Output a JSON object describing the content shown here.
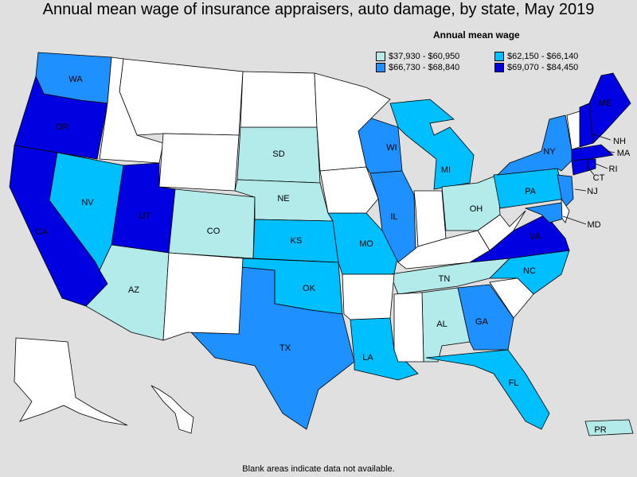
{
  "title": "Annual mean wage of insurance appraisers, auto damage, by state, May 2019",
  "legend": {
    "title": "Annual mean wage",
    "items": [
      {
        "label": "$37,930 - $60,950",
        "color": "#b3eaea"
      },
      {
        "label": "$62,150 - $66,140",
        "color": "#00bfff"
      },
      {
        "label": "$66,730 - $68,840",
        "color": "#1e90ff"
      },
      {
        "label": "$69,070 - $84,450",
        "color": "#0000e0"
      }
    ]
  },
  "footnote": "Blank areas indicate data not available.",
  "colors": {
    "nodata": "#ffffff",
    "background": "#e0e0e0"
  },
  "states": [
    {
      "abbr": "WA",
      "tier": 2
    },
    {
      "abbr": "OR",
      "tier": 3
    },
    {
      "abbr": "CA",
      "tier": 3
    },
    {
      "abbr": "NV",
      "tier": 1
    },
    {
      "abbr": "UT",
      "tier": 3
    },
    {
      "abbr": "AZ",
      "tier": 0
    },
    {
      "abbr": "CO",
      "tier": 0
    },
    {
      "abbr": "SD",
      "tier": 0
    },
    {
      "abbr": "NE",
      "tier": 0
    },
    {
      "abbr": "KS",
      "tier": 1
    },
    {
      "abbr": "OK",
      "tier": 1
    },
    {
      "abbr": "TX",
      "tier": 2
    },
    {
      "abbr": "MO",
      "tier": 1
    },
    {
      "abbr": "LA",
      "tier": 1
    },
    {
      "abbr": "WI",
      "tier": 2
    },
    {
      "abbr": "IL",
      "tier": 2
    },
    {
      "abbr": "MI",
      "tier": 1
    },
    {
      "abbr": "OH",
      "tier": 0
    },
    {
      "abbr": "TN",
      "tier": 0
    },
    {
      "abbr": "AL",
      "tier": 0
    },
    {
      "abbr": "GA",
      "tier": 2
    },
    {
      "abbr": "FL",
      "tier": 1
    },
    {
      "abbr": "NC",
      "tier": 1
    },
    {
      "abbr": "VA",
      "tier": 3
    },
    {
      "abbr": "PA",
      "tier": 1
    },
    {
      "abbr": "NY",
      "tier": 2
    },
    {
      "abbr": "NJ",
      "tier": 2
    },
    {
      "abbr": "MD",
      "tier": 2
    },
    {
      "abbr": "CT",
      "tier": 3
    },
    {
      "abbr": "RI",
      "tier": 3
    },
    {
      "abbr": "MA",
      "tier": 3
    },
    {
      "abbr": "NH",
      "tier": 3
    },
    {
      "abbr": "ME",
      "tier": 3
    },
    {
      "abbr": "PR",
      "tier": 0
    },
    {
      "abbr": "MT",
      "tier": null
    },
    {
      "abbr": "ID",
      "tier": null
    },
    {
      "abbr": "WY",
      "tier": null
    },
    {
      "abbr": "ND",
      "tier": null
    },
    {
      "abbr": "MN",
      "tier": null
    },
    {
      "abbr": "IA",
      "tier": null
    },
    {
      "abbr": "NM",
      "tier": null
    },
    {
      "abbr": "AR",
      "tier": null
    },
    {
      "abbr": "MS",
      "tier": null
    },
    {
      "abbr": "IN",
      "tier": null
    },
    {
      "abbr": "KY",
      "tier": null
    },
    {
      "abbr": "WV",
      "tier": null
    },
    {
      "abbr": "SC",
      "tier": null
    },
    {
      "abbr": "VT",
      "tier": null
    },
    {
      "abbr": "DE",
      "tier": null
    },
    {
      "abbr": "AK",
      "tier": null
    },
    {
      "abbr": "HI",
      "tier": null
    }
  ]
}
